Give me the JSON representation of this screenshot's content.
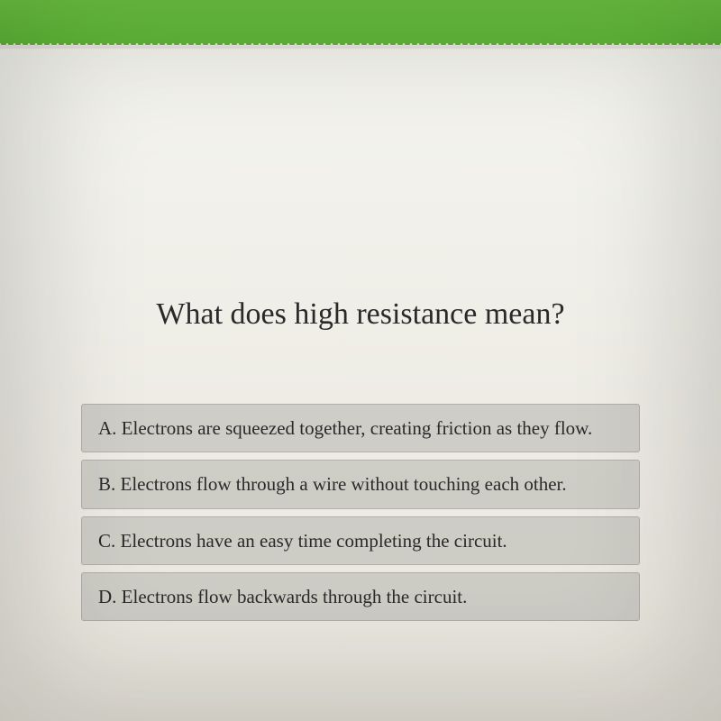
{
  "colors": {
    "header_top": "#6fc644",
    "header_bottom": "#5fb838",
    "background_top": "#f5f5f0",
    "background_bottom": "#e8e5dc",
    "option_bg": "rgba(180, 180, 175, 0.55)",
    "option_border": "rgba(120, 120, 115, 0.35)",
    "text_color": "#2a2a2a"
  },
  "typography": {
    "question_fontsize": 34,
    "option_fontsize": 21,
    "font_family": "Georgia, serif"
  },
  "question": {
    "text": "What does high resistance mean?"
  },
  "options": [
    {
      "letter": "A",
      "text": "A.  Electrons are squeezed together, creating friction as they flow."
    },
    {
      "letter": "B",
      "text": "B.  Electrons flow through a wire without touching each other."
    },
    {
      "letter": "C",
      "text": "C.  Electrons have an easy time completing the circuit."
    },
    {
      "letter": "D",
      "text": "D.  Electrons flow backwards through the circuit."
    }
  ]
}
